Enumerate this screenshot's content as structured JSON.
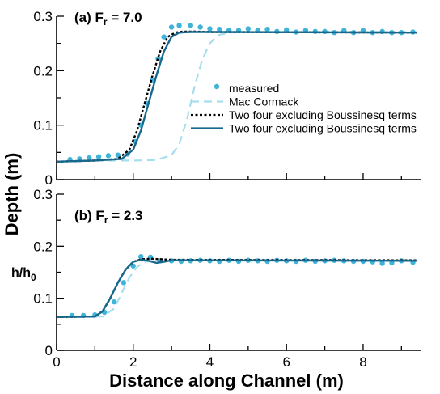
{
  "colors": {
    "measured": "#3fb4d8",
    "mac_cormack": "#a6def0",
    "boussinesq_dotted": "#000000",
    "boussinesq_solid": "#17688f"
  },
  "chart_data": [
    {
      "type": "line",
      "title": "(a) Fr = 7.0",
      "title_parts": {
        "prefix": "(a) F",
        "sub": "r",
        "suffix": " = 7.0"
      },
      "xlabel": "Distance along Channel (m)",
      "ylabel": "Depth (m)",
      "xlim": [
        0,
        9.5
      ],
      "ylim": [
        0,
        0.3
      ],
      "yticks": [
        "0",
        "0.1",
        "0.2",
        "0.3"
      ],
      "grid": false,
      "legend_position": "center-right",
      "series": [
        {
          "name": "measured",
          "style": "markers",
          "color": "#3fb4d8",
          "x": [
            0.35,
            0.6,
            0.85,
            1.1,
            1.35,
            1.6,
            1.85,
            2.05,
            2.2,
            2.35,
            2.5,
            2.65,
            2.8,
            3.0,
            3.2,
            3.5,
            3.75,
            4.0,
            4.25,
            4.5,
            4.75,
            5.0,
            5.25,
            5.5,
            5.75,
            6.0,
            6.25,
            6.5,
            6.75,
            7.0,
            7.25,
            7.5,
            7.75,
            8.0,
            8.25,
            8.5,
            8.75,
            9.0,
            9.3
          ],
          "y": [
            0.037,
            0.038,
            0.04,
            0.042,
            0.044,
            0.045,
            0.047,
            0.07,
            0.1,
            0.14,
            0.182,
            0.222,
            0.262,
            0.28,
            0.283,
            0.283,
            0.28,
            0.277,
            0.276,
            0.274,
            0.274,
            0.277,
            0.274,
            0.276,
            0.272,
            0.275,
            0.271,
            0.274,
            0.272,
            0.272,
            0.27,
            0.274,
            0.27,
            0.274,
            0.27,
            0.272,
            0.27,
            0.27,
            0.271
          ]
        },
        {
          "name": "Mac Cormack",
          "style": "dashed",
          "color": "#a6def0",
          "x": [
            0,
            1,
            2,
            2.6,
            3.0,
            3.2,
            3.4,
            3.6,
            3.8,
            4.0,
            4.2,
            4.5,
            5,
            9.4
          ],
          "y": [
            0.033,
            0.035,
            0.035,
            0.036,
            0.045,
            0.065,
            0.11,
            0.17,
            0.22,
            0.25,
            0.265,
            0.27,
            0.271,
            0.271
          ]
        },
        {
          "name": "Two four excluding Boussinesq terms",
          "style": "dotted",
          "color": "#000000",
          "x": [
            0,
            1,
            1.6,
            1.9,
            2.1,
            2.3,
            2.5,
            2.7,
            2.9,
            3.1,
            3.3,
            3.6,
            4,
            9.4
          ],
          "y": [
            0.033,
            0.035,
            0.038,
            0.055,
            0.09,
            0.14,
            0.19,
            0.235,
            0.262,
            0.27,
            0.272,
            0.272,
            0.271,
            0.27
          ]
        },
        {
          "name": "Two four excluding Boussinesq terms",
          "style": "solid",
          "color": "#17688f",
          "x": [
            0,
            1,
            1.7,
            2.0,
            2.2,
            2.4,
            2.6,
            2.8,
            3.0,
            3.2,
            3.5,
            4,
            9.4
          ],
          "y": [
            0.033,
            0.035,
            0.038,
            0.055,
            0.09,
            0.14,
            0.19,
            0.235,
            0.262,
            0.27,
            0.271,
            0.271,
            0.27
          ]
        }
      ]
    },
    {
      "type": "line",
      "title": "(b) Fr = 2.3",
      "title_parts": {
        "prefix": "(b) F",
        "sub": "r",
        "suffix": " = 2.3"
      },
      "annotation_parts": {
        "base": "h/h",
        "sub": "0"
      },
      "xlabel": "Distance along Channel (m)",
      "xlim": [
        0,
        9.5
      ],
      "ylim": [
        0,
        0.3
      ],
      "xticks": [
        "0",
        "2",
        "4",
        "6",
        "8"
      ],
      "yticks": [
        "0",
        "0.1",
        "0.2",
        "0.3"
      ],
      "grid": false,
      "series": [
        {
          "name": "measured",
          "style": "markers",
          "color": "#3fb4d8",
          "x": [
            0.4,
            0.7,
            1.0,
            1.25,
            1.5,
            1.75,
            2.0,
            2.2,
            2.45,
            2.7,
            3.0,
            3.25,
            3.5,
            3.75,
            4.0,
            4.25,
            4.5,
            4.75,
            5.0,
            5.25,
            5.5,
            5.75,
            6.0,
            6.25,
            6.5,
            6.75,
            7.0,
            7.25,
            7.5,
            7.75,
            8.0,
            8.25,
            8.5,
            8.75,
            9.0,
            9.3
          ],
          "y": [
            0.067,
            0.067,
            0.068,
            0.073,
            0.093,
            0.13,
            0.162,
            0.18,
            0.179,
            0.172,
            0.172,
            0.171,
            0.172,
            0.173,
            0.172,
            0.171,
            0.173,
            0.171,
            0.173,
            0.172,
            0.171,
            0.173,
            0.172,
            0.171,
            0.173,
            0.171,
            0.172,
            0.173,
            0.172,
            0.171,
            0.171,
            0.17,
            0.167,
            0.168,
            0.172,
            0.169
          ]
        },
        {
          "name": "Mac Cormack",
          "style": "dashed",
          "color": "#a6def0",
          "x": [
            0,
            1.2,
            1.5,
            1.7,
            1.9,
            2.1,
            2.3,
            2.6,
            3,
            9.4
          ],
          "y": [
            0.064,
            0.065,
            0.08,
            0.11,
            0.14,
            0.16,
            0.17,
            0.173,
            0.173,
            0.173
          ]
        },
        {
          "name": "Two four excluding Boussinesq terms",
          "style": "dotted",
          "color": "#000000",
          "x": [
            0,
            1.0,
            1.2,
            1.4,
            1.6,
            1.8,
            2.0,
            2.2,
            2.5,
            3,
            9.4
          ],
          "y": [
            0.064,
            0.065,
            0.075,
            0.1,
            0.13,
            0.155,
            0.17,
            0.175,
            0.176,
            0.174,
            0.173
          ]
        },
        {
          "name": "Two four excluding Boussinesq terms",
          "style": "solid",
          "color": "#17688f",
          "x": [
            0,
            1.0,
            1.2,
            1.4,
            1.6,
            1.8,
            2.0,
            2.2,
            2.4,
            2.6,
            2.8,
            3.0,
            3.5,
            9.4
          ],
          "y": [
            0.064,
            0.065,
            0.075,
            0.1,
            0.13,
            0.155,
            0.17,
            0.174,
            0.172,
            0.168,
            0.17,
            0.173,
            0.173,
            0.172
          ]
        }
      ]
    }
  ]
}
